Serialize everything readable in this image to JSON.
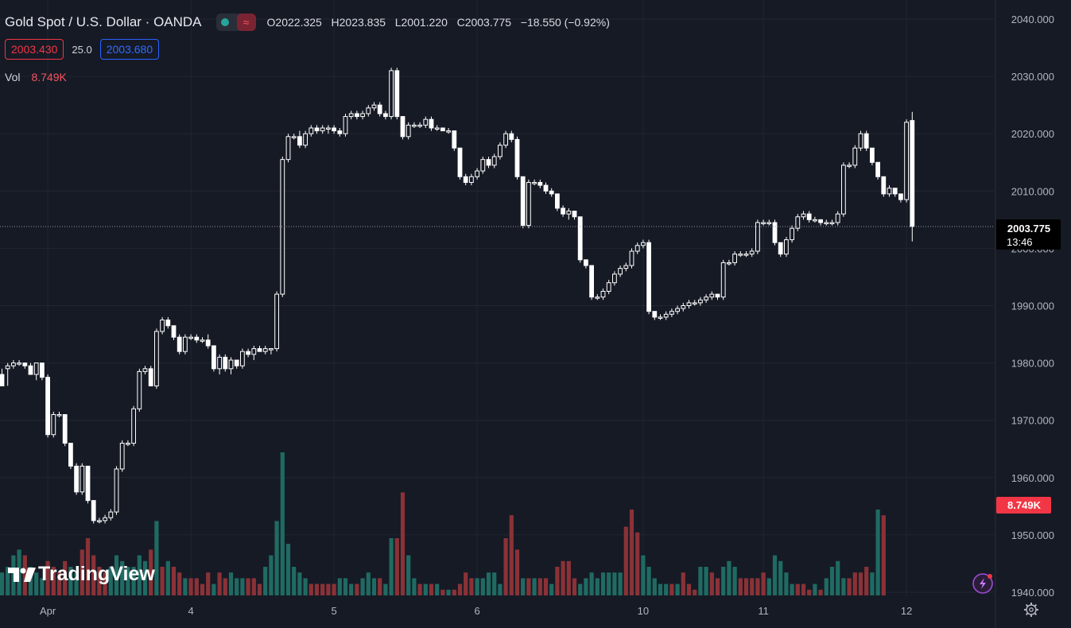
{
  "header": {
    "title": "Gold Spot / U.S. Dollar · OANDA",
    "ohlc": {
      "o_label": "O",
      "o": "2022.325",
      "h_label": "H",
      "h": "2023.835",
      "l_label": "L",
      "l": "2001.220",
      "c_label": "C",
      "c": "2003.775",
      "change": "−18.550 (−0.92%)"
    },
    "sell_price": "2003.430",
    "spread": "25.0",
    "buy_price": "2003.680",
    "volume_label": "Vol",
    "volume_value": "8.749K"
  },
  "price_badge": {
    "price": "2003.775",
    "countdown": "13:46"
  },
  "volume_badge": "8.749K",
  "logo_text": "TradingView",
  "colors": {
    "background": "#161a25",
    "candle": "#ffffff",
    "volume_up": "#1f6b63",
    "volume_down": "#8a3237",
    "sell": "#f23645",
    "buy": "#2962ff",
    "badge_red": "#f23645"
  },
  "chart_data": {
    "type": "candlestick",
    "y_axis": {
      "min": 1940,
      "max": 2040,
      "ticks": [
        "1940.000",
        "1950.000",
        "1960.000",
        "1970.000",
        "1980.000",
        "1990.000",
        "2000.000",
        "2010.000",
        "2020.000",
        "2030.000",
        "2040.000"
      ]
    },
    "x_axis": {
      "ticks": [
        "Apr",
        "4",
        "5",
        "6",
        "10",
        "11",
        "12"
      ],
      "tick_bar_index": [
        8,
        33,
        58,
        83,
        112,
        133,
        158
      ]
    },
    "grid": true,
    "ohlc": [
      [
        1978,
        1979,
        1976,
        1976
      ],
      [
        1979,
        1980,
        1976,
        1979.5
      ],
      [
        1979.5,
        1980.5,
        1979,
        1980
      ],
      [
        1980,
        1980.5,
        1979.5,
        1980
      ],
      [
        1980,
        1980,
        1979,
        1979.5
      ],
      [
        1979.5,
        1980,
        1978,
        1978
      ],
      [
        1978,
        1980,
        1977,
        1980
      ],
      [
        1980,
        1980,
        1977,
        1977.5
      ],
      [
        1977.5,
        1978,
        1967,
        1967.5
      ],
      [
        1967.5,
        1971.5,
        1967,
        1971
      ],
      [
        1971,
        1971.5,
        1970.5,
        1971
      ],
      [
        1971,
        1971,
        1965.5,
        1966
      ],
      [
        1966,
        1966,
        1961.5,
        1962
      ],
      [
        1962,
        1962.5,
        1957,
        1957.5
      ],
      [
        1957.5,
        1962.5,
        1957,
        1962
      ],
      [
        1962,
        1962,
        1955.5,
        1956
      ],
      [
        1956,
        1956,
        1952,
        1952.5
      ],
      [
        1952.5,
        1953,
        1952,
        1952.5
      ],
      [
        1952.5,
        1953.5,
        1952,
        1953
      ],
      [
        1953,
        1954.5,
        1952.5,
        1954
      ],
      [
        1954,
        1962,
        1953.5,
        1961.5
      ],
      [
        1961.5,
        1966.5,
        1961,
        1966
      ],
      [
        1966,
        1966.5,
        1965.5,
        1966
      ],
      [
        1966,
        1972.5,
        1965.5,
        1972
      ],
      [
        1972,
        1979,
        1971.5,
        1978.5
      ],
      [
        1978.5,
        1979.5,
        1978,
        1979
      ],
      [
        1979,
        1979.5,
        1976,
        1976
      ],
      [
        1976,
        1986,
        1975.5,
        1985.5
      ],
      [
        1985.5,
        1988,
        1985,
        1987.5
      ],
      [
        1987.5,
        1988,
        1986,
        1986.5
      ],
      [
        1986.5,
        1986.5,
        1984,
        1984.5
      ],
      [
        1984.5,
        1985,
        1981.5,
        1982
      ],
      [
        1982,
        1985,
        1981.5,
        1984.5
      ],
      [
        1984.5,
        1985,
        1984,
        1984.5
      ],
      [
        1984.5,
        1985,
        1983.5,
        1984
      ],
      [
        1984,
        1984.5,
        1983.5,
        1984
      ],
      [
        1984,
        1985,
        1982.5,
        1983
      ],
      [
        1983,
        1983,
        1978.5,
        1979
      ],
      [
        1979,
        1981.5,
        1978,
        1981
      ],
      [
        1981,
        1981.5,
        1978.5,
        1979
      ],
      [
        1979,
        1981,
        1978,
        1980.5
      ],
      [
        1980.5,
        1980.5,
        1979,
        1979.5
      ],
      [
        1979.5,
        1982.5,
        1979,
        1982
      ],
      [
        1982,
        1982.5,
        1981,
        1981.5
      ],
      [
        1981.5,
        1983,
        1980.5,
        1982.5
      ],
      [
        1982.5,
        1983,
        1982,
        1982
      ],
      [
        1982,
        1983,
        1981.5,
        1982.5
      ],
      [
        1982.5,
        1982.5,
        1981.5,
        1982.5
      ],
      [
        1982.5,
        1992.5,
        1982,
        1992
      ],
      [
        1992,
        2016,
        1991.5,
        2015.5
      ],
      [
        2015.5,
        2020,
        2015,
        2019.5
      ],
      [
        2019.5,
        2020,
        2019,
        2019.5
      ],
      [
        2019.5,
        2020.5,
        2017.5,
        2018
      ],
      [
        2018,
        2020.5,
        2017.5,
        2020
      ],
      [
        2020,
        2021.5,
        2019.5,
        2021
      ],
      [
        2021,
        2021.5,
        2020,
        2020.5
      ],
      [
        2020.5,
        2021.5,
        2020,
        2021
      ],
      [
        2021,
        2021.5,
        2020,
        2021
      ],
      [
        2021,
        2021.5,
        2020,
        2020.5
      ],
      [
        2020.5,
        2021,
        2019.5,
        2020
      ],
      [
        2020,
        2023.5,
        2019.5,
        2023
      ],
      [
        2023,
        2024,
        2022.5,
        2023.5
      ],
      [
        2023.5,
        2024,
        2022.5,
        2023
      ],
      [
        2023,
        2024,
        2022.5,
        2023.5
      ],
      [
        2023.5,
        2025,
        2023,
        2024.5
      ],
      [
        2024.5,
        2025.5,
        2024,
        2025
      ],
      [
        2025,
        2025.5,
        2023,
        2023.5
      ],
      [
        2023.5,
        2024,
        2022.5,
        2023
      ],
      [
        2023,
        2031.5,
        2022.5,
        2031
      ],
      [
        2031,
        2031.5,
        2022.5,
        2023
      ],
      [
        2023,
        2023,
        2019,
        2019.5
      ],
      [
        2019.5,
        2022,
        2019,
        2021.5
      ],
      [
        2021.5,
        2022,
        2021,
        2021.5
      ],
      [
        2021.5,
        2022,
        2021,
        2021.5
      ],
      [
        2021.5,
        2023,
        2021,
        2022.5
      ],
      [
        2022.5,
        2023,
        2020.5,
        2021
      ],
      [
        2021,
        2021.5,
        2020.5,
        2021
      ],
      [
        2021,
        2021,
        2020.5,
        2020.5
      ],
      [
        2020.5,
        2021,
        2020,
        2020.5
      ],
      [
        2020.5,
        2020.5,
        2017,
        2017.5
      ],
      [
        2017.5,
        2017.5,
        2012,
        2012.5
      ],
      [
        2012.5,
        2013,
        2011,
        2011.5
      ],
      [
        2011.5,
        2013,
        2011,
        2012.5
      ],
      [
        2012.5,
        2014,
        2012,
        2013.5
      ],
      [
        2013.5,
        2016,
        2013,
        2015.5
      ],
      [
        2015.5,
        2016,
        2014,
        2014.5
      ],
      [
        2014.5,
        2016.5,
        2014,
        2016
      ],
      [
        2016,
        2018.5,
        2015.5,
        2018
      ],
      [
        2018,
        2020.5,
        2017.5,
        2020
      ],
      [
        2020,
        2020.5,
        2018.5,
        2019
      ],
      [
        2019,
        2019.5,
        2012,
        2012.5
      ],
      [
        2012.5,
        2012.5,
        2003.5,
        2004
      ],
      [
        2004,
        2012,
        2003.5,
        2011.5
      ],
      [
        2011.5,
        2012,
        2011,
        2011.5
      ],
      [
        2011.5,
        2012,
        2010.5,
        2011
      ],
      [
        2011,
        2011.5,
        2009.5,
        2010
      ],
      [
        2010,
        2010.5,
        2009,
        2009.5
      ],
      [
        2009.5,
        2009.5,
        2006.5,
        2007
      ],
      [
        2007,
        2007.5,
        2005.5,
        2006
      ],
      [
        2006,
        2007,
        2005,
        2006.5
      ],
      [
        2006.5,
        2006.5,
        2005,
        2005.5
      ],
      [
        2005.5,
        2005.5,
        1997.5,
        1998
      ],
      [
        1998,
        1998,
        1996.5,
        1997
      ],
      [
        1997,
        1997,
        1991,
        1991.5
      ],
      [
        1991.5,
        1992,
        1991,
        1991.5
      ],
      [
        1991.5,
        1993,
        1991,
        1992.5
      ],
      [
        1992.5,
        1994.5,
        1992,
        1994
      ],
      [
        1994,
        1996,
        1993.5,
        1995.5
      ],
      [
        1995.5,
        1997,
        1995,
        1996.5
      ],
      [
        1996.5,
        1997.5,
        1996,
        1997
      ],
      [
        1997,
        2000,
        1996.5,
        1999.5
      ],
      [
        1999.5,
        2001,
        1999,
        2000.5
      ],
      [
        2000.5,
        2001.5,
        2000,
        2001
      ],
      [
        2001,
        2001.5,
        1988.5,
        1989
      ],
      [
        1989,
        1989,
        1987.5,
        1988
      ],
      [
        1988,
        1988.5,
        1987.5,
        1988
      ],
      [
        1988,
        1989,
        1987.5,
        1988.5
      ],
      [
        1988.5,
        1989.5,
        1988,
        1989
      ],
      [
        1989,
        1990,
        1988.5,
        1989.5
      ],
      [
        1989.5,
        1990.5,
        1989,
        1990
      ],
      [
        1990,
        1991,
        1989.5,
        1990.5
      ],
      [
        1990.5,
        1991,
        1990,
        1990.5
      ],
      [
        1990.5,
        1991.5,
        1990,
        1991
      ],
      [
        1991,
        1992,
        1990.5,
        1991.5
      ],
      [
        1991.5,
        1992.5,
        1991,
        1992
      ],
      [
        1992,
        1992,
        1991,
        1991.5
      ],
      [
        1991.5,
        1998,
        1991,
        1997.5
      ],
      [
        1997.5,
        1998,
        1997,
        1997.5
      ],
      [
        1997.5,
        1999.5,
        1997,
        1999
      ],
      [
        1999,
        1999.5,
        1998.5,
        1999
      ],
      [
        1999,
        1999.5,
        1998.5,
        1999
      ],
      [
        1999,
        2000,
        1998.5,
        1999.5
      ],
      [
        1999.5,
        2005,
        1999,
        2004.5
      ],
      [
        2004.5,
        2005,
        2004,
        2004.5
      ],
      [
        2004.5,
        2005,
        2004,
        2004.5
      ],
      [
        2004.5,
        2005,
        2000.5,
        2001
      ],
      [
        2001,
        2001,
        1998.5,
        1999
      ],
      [
        1999,
        2002,
        1998.5,
        2001.5
      ],
      [
        2001.5,
        2004,
        2001,
        2003.5
      ],
      [
        2003.5,
        2006,
        2003,
        2005.5
      ],
      [
        2005.5,
        2006.5,
        2005,
        2006
      ],
      [
        2006,
        2006.5,
        2004.5,
        2005
      ],
      [
        2005,
        2005.5,
        2004.5,
        2005
      ],
      [
        2005,
        2005,
        2004,
        2004.5
      ],
      [
        2004.5,
        2005,
        2004,
        2004.5
      ],
      [
        2004.5,
        2005,
        2004,
        2004.5
      ],
      [
        2004.5,
        2006.5,
        2004,
        2006
      ],
      [
        2006,
        2015,
        2005.5,
        2014.5
      ],
      [
        2014.5,
        2015,
        2014,
        2014.5
      ],
      [
        2014.5,
        2018,
        2014,
        2017.5
      ],
      [
        2017.5,
        2020.5,
        2017,
        2020
      ],
      [
        2020,
        2020.5,
        2017,
        2017.5
      ],
      [
        2017.5,
        2017.5,
        2014.5,
        2015
      ],
      [
        2015,
        2015,
        2012,
        2012.5
      ],
      [
        2012.5,
        2012.5,
        2009,
        2009.5
      ],
      [
        2009.5,
        2011,
        2009,
        2010.5
      ],
      [
        2010.5,
        2010.5,
        2009,
        2009.5
      ],
      [
        2009.5,
        2009.5,
        2008,
        2008.5
      ],
      [
        2008.5,
        2022.5,
        2008,
        2022
      ],
      [
        2022.3,
        2023.8,
        2001.2,
        2003.8
      ]
    ],
    "volume": [
      [
        4,
        1
      ],
      [
        5,
        1
      ],
      [
        7,
        1
      ],
      [
        8,
        1
      ],
      [
        7,
        0
      ],
      [
        5,
        1
      ],
      [
        4,
        1
      ],
      [
        3,
        1
      ],
      [
        6,
        0
      ],
      [
        5,
        0
      ],
      [
        4,
        0
      ],
      [
        6,
        0
      ],
      [
        5,
        1
      ],
      [
        4,
        1
      ],
      [
        8,
        0
      ],
      [
        10,
        0
      ],
      [
        7,
        0
      ],
      [
        5,
        0
      ],
      [
        4,
        0
      ],
      [
        5,
        1
      ],
      [
        7,
        1
      ],
      [
        6,
        1
      ],
      [
        5,
        1
      ],
      [
        5,
        1
      ],
      [
        7,
        1
      ],
      [
        6,
        1
      ],
      [
        8,
        0
      ],
      [
        13,
        1
      ],
      [
        5,
        0
      ],
      [
        6,
        1
      ],
      [
        5,
        0
      ],
      [
        4,
        0
      ],
      [
        3,
        1
      ],
      [
        3,
        0
      ],
      [
        3,
        0
      ],
      [
        2,
        0
      ],
      [
        4,
        0
      ],
      [
        2,
        1
      ],
      [
        4,
        0
      ],
      [
        3,
        0
      ],
      [
        4,
        1
      ],
      [
        3,
        1
      ],
      [
        3,
        1
      ],
      [
        3,
        0
      ],
      [
        3,
        0
      ],
      [
        2,
        0
      ],
      [
        5,
        1
      ],
      [
        7,
        1
      ],
      [
        13,
        1
      ],
      [
        25,
        1
      ],
      [
        9,
        1
      ],
      [
        5,
        1
      ],
      [
        4,
        1
      ],
      [
        3,
        1
      ],
      [
        2,
        0
      ],
      [
        2,
        0
      ],
      [
        2,
        0
      ],
      [
        2,
        0
      ],
      [
        2,
        0
      ],
      [
        3,
        1
      ],
      [
        3,
        1
      ],
      [
        2,
        1
      ],
      [
        2,
        0
      ],
      [
        3,
        1
      ],
      [
        4,
        1
      ],
      [
        3,
        1
      ],
      [
        3,
        0
      ],
      [
        2,
        1
      ],
      [
        10,
        1
      ],
      [
        10,
        0
      ],
      [
        18,
        0
      ],
      [
        7,
        1
      ],
      [
        3,
        1
      ],
      [
        2,
        0
      ],
      [
        2,
        1
      ],
      [
        2,
        0
      ],
      [
        2,
        1
      ],
      [
        1,
        0
      ],
      [
        1,
        1
      ],
      [
        1,
        0
      ],
      [
        2,
        0
      ],
      [
        4,
        0
      ],
      [
        3,
        0
      ],
      [
        3,
        1
      ],
      [
        3,
        1
      ],
      [
        4,
        1
      ],
      [
        4,
        1
      ],
      [
        2,
        1
      ],
      [
        10,
        0
      ],
      [
        14,
        0
      ],
      [
        8,
        0
      ],
      [
        3,
        1
      ],
      [
        3,
        0
      ],
      [
        3,
        1
      ],
      [
        3,
        0
      ],
      [
        3,
        0
      ],
      [
        2,
        1
      ],
      [
        5,
        0
      ],
      [
        6,
        0
      ],
      [
        6,
        0
      ],
      [
        3,
        0
      ],
      [
        2,
        1
      ],
      [
        3,
        1
      ],
      [
        4,
        1
      ],
      [
        3,
        1
      ],
      [
        4,
        1
      ],
      [
        4,
        1
      ],
      [
        4,
        1
      ],
      [
        4,
        1
      ],
      [
        12,
        0
      ],
      [
        15,
        0
      ],
      [
        11,
        0
      ],
      [
        7,
        1
      ],
      [
        5,
        1
      ],
      [
        3,
        1
      ],
      [
        2,
        1
      ],
      [
        2,
        1
      ],
      [
        2,
        0
      ],
      [
        2,
        1
      ],
      [
        4,
        0
      ],
      [
        2,
        0
      ],
      [
        1,
        0
      ],
      [
        5,
        1
      ],
      [
        5,
        1
      ],
      [
        4,
        0
      ],
      [
        3,
        0
      ],
      [
        5,
        1
      ],
      [
        6,
        1
      ],
      [
        5,
        1
      ],
      [
        3,
        0
      ],
      [
        3,
        0
      ],
      [
        3,
        0
      ],
      [
        3,
        0
      ],
      [
        4,
        0
      ],
      [
        3,
        1
      ],
      [
        7,
        1
      ],
      [
        6,
        1
      ],
      [
        4,
        1
      ],
      [
        2,
        1
      ],
      [
        2,
        0
      ],
      [
        2,
        0
      ],
      [
        1,
        0
      ],
      [
        2,
        1
      ],
      [
        1,
        0
      ],
      [
        3,
        1
      ],
      [
        5,
        1
      ],
      [
        6,
        1
      ],
      [
        3,
        1
      ],
      [
        3,
        0
      ],
      [
        4,
        0
      ],
      [
        4,
        0
      ],
      [
        5,
        0
      ],
      [
        4,
        1
      ],
      [
        15,
        1
      ],
      [
        14,
        0
      ]
    ]
  }
}
